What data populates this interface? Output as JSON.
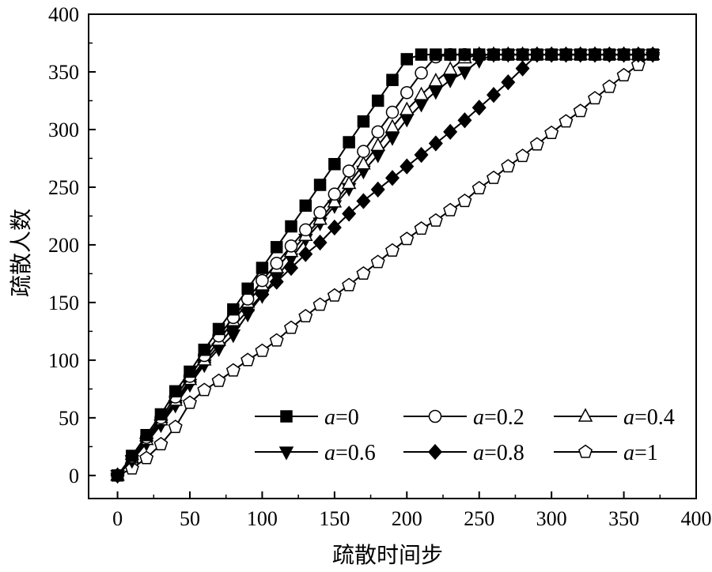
{
  "chart_data": {
    "type": "line",
    "xlabel": "疏散时间步",
    "ylabel": "疏散人数",
    "xlim": [
      -20,
      400
    ],
    "ylim": [
      -20,
      400
    ],
    "xticks": [
      0,
      50,
      100,
      150,
      200,
      250,
      300,
      350,
      400
    ],
    "yticks": [
      0,
      50,
      100,
      150,
      200,
      250,
      300,
      350,
      400
    ],
    "grid": false,
    "legend_position": "bottom-right",
    "series": [
      {
        "name": "a=0",
        "legend_prefix": "a",
        "legend_suffix": "=0",
        "marker": "square",
        "fill": "#000000",
        "x": [
          0,
          10,
          20,
          30,
          40,
          50,
          60,
          70,
          80,
          90,
          100,
          110,
          120,
          130,
          140,
          150,
          160,
          170,
          180,
          190,
          200,
          210,
          220,
          230,
          240,
          250,
          260,
          270,
          280,
          290,
          300,
          310,
          320,
          330,
          340,
          350,
          360,
          370
        ],
        "y": [
          0,
          17,
          35,
          53,
          73,
          90,
          109,
          127,
          144,
          162,
          180,
          198,
          216,
          234,
          252,
          270,
          289,
          307,
          325,
          343,
          361,
          365,
          365,
          365,
          365,
          365,
          365,
          365,
          365,
          365,
          365,
          365,
          365,
          365,
          365,
          365,
          365,
          365
        ]
      },
      {
        "name": "a=0.2",
        "legend_prefix": "a",
        "legend_suffix": "=0.2",
        "marker": "circle",
        "fill": "#ffffff",
        "x": [
          0,
          10,
          20,
          30,
          40,
          50,
          60,
          70,
          80,
          90,
          100,
          110,
          120,
          130,
          140,
          150,
          160,
          170,
          180,
          190,
          200,
          210,
          220,
          230,
          240,
          250,
          260,
          270,
          280,
          290,
          300,
          310,
          320,
          330,
          340,
          350,
          360,
          370
        ],
        "y": [
          0,
          16,
          33,
          50,
          68,
          86,
          104,
          121,
          137,
          153,
          169,
          184,
          199,
          213,
          228,
          244,
          264,
          281,
          298,
          315,
          332,
          349,
          363,
          365,
          365,
          365,
          365,
          365,
          365,
          365,
          365,
          365,
          365,
          365,
          365,
          365,
          365,
          365
        ]
      },
      {
        "name": "a=0.4",
        "legend_prefix": "a",
        "legend_suffix": "=0.4",
        "marker": "triangle-up",
        "fill": "#ffffff",
        "x": [
          0,
          10,
          20,
          30,
          40,
          50,
          60,
          70,
          80,
          90,
          100,
          110,
          120,
          130,
          140,
          150,
          160,
          170,
          180,
          190,
          200,
          210,
          220,
          230,
          240,
          250,
          260,
          270,
          280,
          290,
          300,
          310,
          320,
          330,
          340,
          350,
          360,
          370
        ],
        "y": [
          0,
          15,
          31,
          48,
          65,
          83,
          100,
          117,
          134,
          150,
          165,
          180,
          194,
          208,
          222,
          237,
          253,
          270,
          286,
          302,
          317,
          330,
          342,
          352,
          362,
          365,
          365,
          365,
          365,
          365,
          365,
          365,
          365,
          365,
          365,
          365,
          365,
          365
        ]
      },
      {
        "name": "a=0.6",
        "legend_prefix": "a",
        "legend_suffix": "=0.6",
        "marker": "triangle-down",
        "fill": "#000000",
        "x": [
          0,
          10,
          20,
          30,
          40,
          50,
          60,
          70,
          80,
          90,
          100,
          110,
          120,
          130,
          140,
          150,
          160,
          170,
          180,
          190,
          200,
          210,
          220,
          230,
          240,
          250,
          260,
          270,
          280,
          290,
          300,
          310,
          320,
          330,
          340,
          350,
          360,
          370
        ],
        "y": [
          0,
          13,
          28,
          44,
          61,
          79,
          96,
          110,
          122,
          140,
          156,
          172,
          188,
          205,
          219,
          234,
          249,
          264,
          278,
          293,
          309,
          322,
          333,
          343,
          350,
          360,
          365,
          365,
          365,
          365,
          365,
          365,
          365,
          365,
          365,
          365,
          365,
          365
        ]
      },
      {
        "name": "a=0.8",
        "legend_prefix": "a",
        "legend_suffix": "=0.8",
        "marker": "diamond",
        "fill": "#000000",
        "x": [
          0,
          10,
          20,
          30,
          40,
          50,
          60,
          70,
          80,
          90,
          100,
          110,
          120,
          130,
          140,
          150,
          160,
          170,
          180,
          190,
          200,
          210,
          220,
          230,
          240,
          250,
          260,
          270,
          280,
          290,
          300,
          310,
          320,
          330,
          340,
          350,
          360,
          370
        ],
        "y": [
          0,
          14,
          30,
          46,
          63,
          81,
          98,
          113,
          129,
          143,
          157,
          168,
          180,
          192,
          202,
          215,
          227,
          238,
          248,
          258,
          268,
          278,
          288,
          298,
          308,
          319,
          330,
          341,
          353,
          365,
          365,
          365,
          365,
          365,
          365,
          365,
          365,
          365
        ]
      },
      {
        "name": "a=1",
        "legend_prefix": "a",
        "legend_suffix": "=1",
        "marker": "pentagon",
        "fill": "#ffffff",
        "x": [
          0,
          10,
          20,
          30,
          40,
          50,
          60,
          70,
          80,
          90,
          100,
          110,
          120,
          130,
          140,
          150,
          160,
          170,
          180,
          190,
          200,
          210,
          220,
          230,
          240,
          250,
          260,
          270,
          280,
          290,
          300,
          310,
          320,
          330,
          340,
          350,
          360,
          370
        ],
        "y": [
          0,
          6,
          15,
          27,
          42,
          63,
          74,
          82,
          91,
          100,
          108,
          117,
          128,
          138,
          148,
          156,
          165,
          175,
          185,
          195,
          205,
          214,
          221,
          230,
          238,
          249,
          258,
          268,
          277,
          287,
          297,
          307,
          316,
          327,
          337,
          347,
          356,
          365
        ]
      }
    ]
  }
}
